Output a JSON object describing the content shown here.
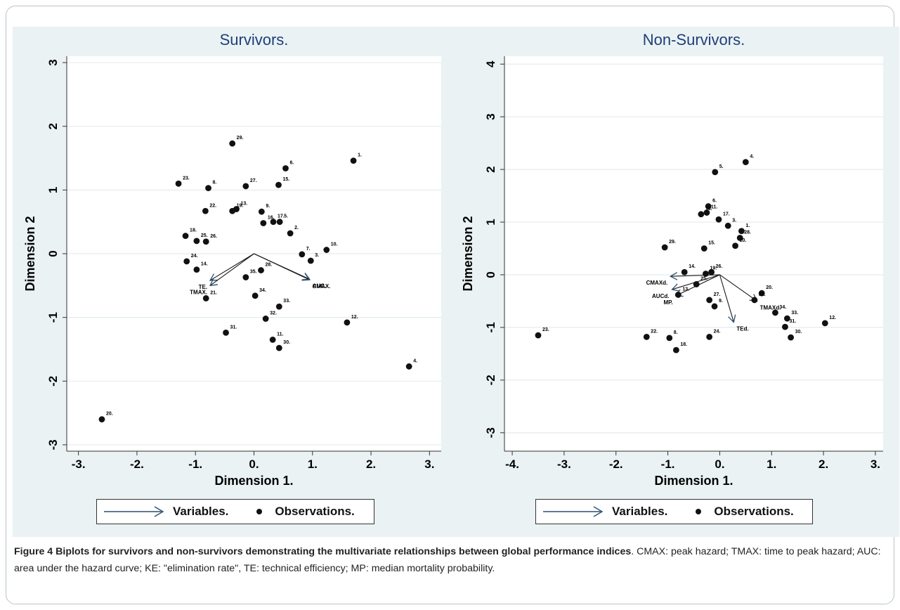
{
  "caption": {
    "title": "Figure 4 Biplots for survivors and non-survivors demonstrating the multivariate relationships between global performance indices",
    "text": ". CMAX: peak hazard; TMAX: time to peak hazard; AUC: area under the hazard curve; KE: \"elimination rate\", TE: technical efficiency; MP: median mortality probability."
  },
  "legend": {
    "variables": "Variables.",
    "observations": "Observations."
  },
  "colors": {
    "background": "#eaf2f3",
    "title": "#1f3f7a",
    "arrow": "#2c4e6e",
    "point": "#111111"
  },
  "chart_data": [
    {
      "type": "scatter",
      "title": "Survivors.",
      "xlabel": "Dimension 1.",
      "ylabel": "Dimension 2",
      "xlim": [
        -3.2,
        3.2
      ],
      "ylim": [
        -3.1,
        3.1
      ],
      "xticks": [
        -3,
        -2,
        -1,
        0,
        1,
        2,
        3
      ],
      "xtick_labels": [
        "-3.",
        "-2.",
        "-1.",
        "0.",
        "1.",
        "2.",
        "3."
      ],
      "yticks": [
        -3,
        -2,
        -1,
        0,
        1,
        2,
        3
      ],
      "ytick_labels": [
        "-3",
        "-2",
        "-1",
        "0",
        "1",
        "2",
        "3"
      ],
      "points": [
        {
          "label": "1.",
          "x": 1.7,
          "y": 1.46
        },
        {
          "label": "2.",
          "x": 0.62,
          "y": 0.32
        },
        {
          "label": "3.",
          "x": 0.97,
          "y": -0.11
        },
        {
          "label": "4.",
          "x": 2.65,
          "y": -1.77
        },
        {
          "label": "6.",
          "x": 0.54,
          "y": 1.34
        },
        {
          "label": "7.",
          "x": 0.82,
          "y": -0.01
        },
        {
          "label": "8.",
          "x": -0.78,
          "y": 1.03
        },
        {
          "label": "9.",
          "x": 0.13,
          "y": 0.66
        },
        {
          "label": "10.",
          "x": 1.24,
          "y": 0.06
        },
        {
          "label": "11.",
          "x": 0.32,
          "y": -1.35
        },
        {
          "label": "12.",
          "x": 1.59,
          "y": -1.08
        },
        {
          "label": "13.",
          "x": -0.3,
          "y": 0.7
        },
        {
          "label": "14.",
          "x": -0.98,
          "y": -0.25
        },
        {
          "label": "15.",
          "x": 0.42,
          "y": 1.08
        },
        {
          "label": "16.",
          "x": 0.16,
          "y": 0.48
        },
        {
          "label": "17.",
          "x": 0.33,
          "y": 0.5
        },
        {
          "label": "18.",
          "x": -1.17,
          "y": 0.28
        },
        {
          "label": "19.",
          "x": -0.37,
          "y": 0.67
        },
        {
          "label": "20.",
          "x": -2.6,
          "y": -2.6
        },
        {
          "label": "21.",
          "x": -0.82,
          "y": -0.7
        },
        {
          "label": "22.",
          "x": -0.83,
          "y": 0.67
        },
        {
          "label": "23.",
          "x": -1.29,
          "y": 1.1
        },
        {
          "label": "24.",
          "x": -1.15,
          "y": -0.12
        },
        {
          "label": "25.",
          "x": -0.98,
          "y": 0.2
        },
        {
          "label": "26.",
          "x": -0.82,
          "y": 0.19
        },
        {
          "label": "27.",
          "x": -0.14,
          "y": 1.06
        },
        {
          "label": "28.",
          "x": 0.12,
          "y": -0.26
        },
        {
          "label": "29.",
          "x": -0.37,
          "y": 1.73
        },
        {
          "label": "30.",
          "x": 0.43,
          "y": -1.48
        },
        {
          "label": "31.",
          "x": -0.48,
          "y": -1.24
        },
        {
          "label": "32.",
          "x": 0.2,
          "y": -1.02
        },
        {
          "label": "33.",
          "x": 0.43,
          "y": -0.83
        },
        {
          "label": "34.",
          "x": 0.02,
          "y": -0.66
        },
        {
          "label": "35.",
          "x": -0.14,
          "y": -0.37
        },
        {
          "label": "5.",
          "x": 0.44,
          "y": 0.5
        }
      ],
      "arrows": [
        {
          "label": "TE.",
          "x": -0.75,
          "y": -0.42
        },
        {
          "label": "TMAX.",
          "x": -0.75,
          "y": -0.5
        },
        {
          "label": "CMAX.",
          "x": 0.95,
          "y": -0.41
        },
        {
          "label": "AUC.",
          "x": 0.95,
          "y": -0.4
        }
      ]
    },
    {
      "type": "scatter",
      "title": "Non-Survivors.",
      "xlabel": "Dimension 1.",
      "ylabel": "Dimension 2",
      "xlim": [
        -4.15,
        3.15
      ],
      "ylim": [
        -3.35,
        4.15
      ],
      "xticks": [
        -4,
        -3,
        -2,
        -1,
        0,
        1,
        2,
        3
      ],
      "xtick_labels": [
        "-4.",
        "-3.",
        "-2.",
        "-1.",
        "0.",
        "1.",
        "2.",
        "3."
      ],
      "yticks": [
        -3,
        -2,
        -1,
        0,
        1,
        2,
        3,
        4
      ],
      "ytick_labels": [
        "-3",
        "-2",
        "-1",
        "0",
        "1",
        "2",
        "3",
        "4"
      ],
      "points": [
        {
          "label": "1.",
          "x": 0.42,
          "y": 0.83
        },
        {
          "label": "3.",
          "x": 0.16,
          "y": 0.93
        },
        {
          "label": "4.",
          "x": 0.5,
          "y": 2.14
        },
        {
          "label": "5.",
          "x": -0.09,
          "y": 1.95
        },
        {
          "label": "6.",
          "x": -0.22,
          "y": 1.3
        },
        {
          "label": "8.",
          "x": -0.97,
          "y": -1.2
        },
        {
          "label": "9.",
          "x": -0.1,
          "y": -0.6
        },
        {
          "label": "12.",
          "x": 2.03,
          "y": -0.92
        },
        {
          "label": "13.",
          "x": -0.8,
          "y": -0.38
        },
        {
          "label": "14.",
          "x": -0.68,
          "y": 0.05
        },
        {
          "label": "15.",
          "x": -0.3,
          "y": 0.5
        },
        {
          "label": "16.",
          "x": -0.36,
          "y": 1.15
        },
        {
          "label": "17.",
          "x": -0.02,
          "y": 1.05
        },
        {
          "label": "18.",
          "x": -0.84,
          "y": -1.43
        },
        {
          "label": "19.",
          "x": -0.27,
          "y": 0.02
        },
        {
          "label": "20.",
          "x": 0.81,
          "y": -0.35
        },
        {
          "label": "22.",
          "x": -1.41,
          "y": -1.18
        },
        {
          "label": "23.",
          "x": -3.5,
          "y": -1.15
        },
        {
          "label": "24.",
          "x": -0.2,
          "y": -1.18
        },
        {
          "label": "25.",
          "x": -0.45,
          "y": -0.18
        },
        {
          "label": "26.",
          "x": -0.16,
          "y": 0.05
        },
        {
          "label": "27.",
          "x": -0.2,
          "y": -0.48
        },
        {
          "label": "28.",
          "x": 0.39,
          "y": 0.7
        },
        {
          "label": "29.",
          "x": -1.06,
          "y": 0.52
        },
        {
          "label": "30.",
          "x": 1.37,
          "y": -1.19
        },
        {
          "label": "31.",
          "x": 1.26,
          "y": -0.99
        },
        {
          "label": "32.",
          "x": 0.67,
          "y": -0.48
        },
        {
          "label": "33.",
          "x": 1.3,
          "y": -0.83
        },
        {
          "label": "34.",
          "x": 1.07,
          "y": -0.72
        },
        {
          "label": "10.",
          "x": 0.3,
          "y": 0.55
        },
        {
          "label": "11.",
          "x": -0.25,
          "y": 1.18
        }
      ],
      "arrows": [
        {
          "label": "CMAXd.",
          "x": -0.95,
          "y": -0.03
        },
        {
          "label": "AUCd.",
          "x": -0.92,
          "y": -0.28
        },
        {
          "label": "MP.",
          "x": -0.85,
          "y": -0.4
        },
        {
          "label": "TMAXd.",
          "x": 0.72,
          "y": -0.5
        },
        {
          "label": "TEd.",
          "x": 0.27,
          "y": -0.9
        }
      ]
    }
  ]
}
